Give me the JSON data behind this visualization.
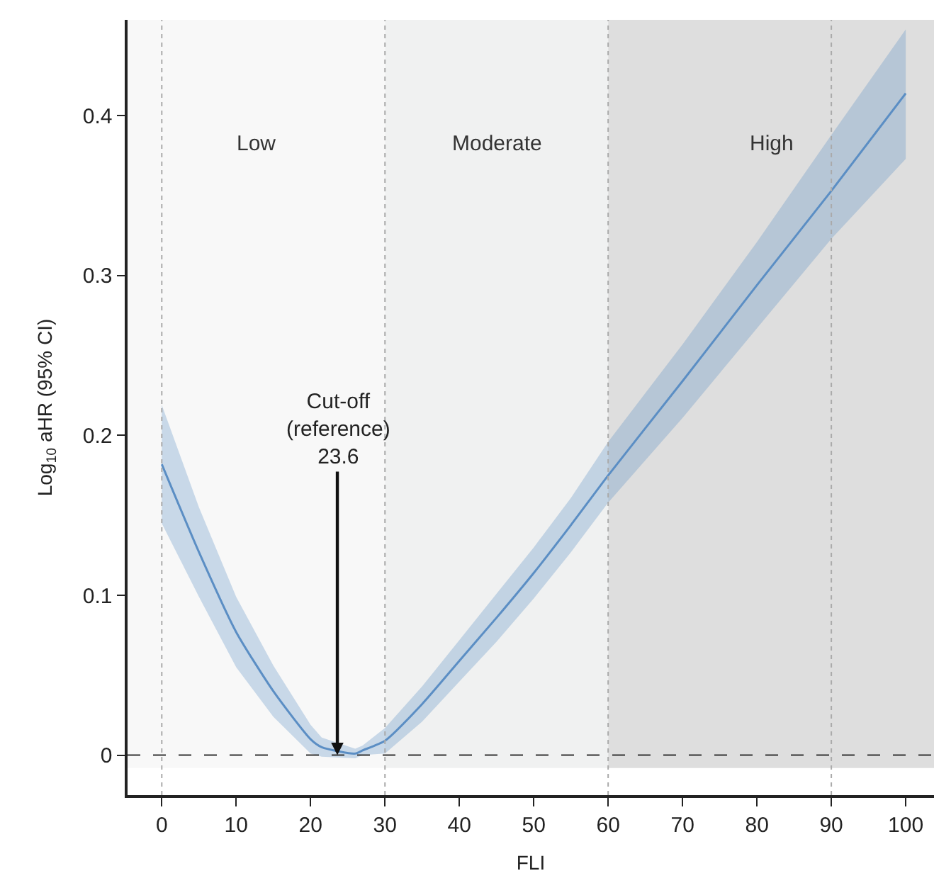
{
  "chart_data": {
    "type": "line",
    "xlabel": "FLI",
    "ylabel": "Log$_{10}$ aHR (95% CI)",
    "xlim": [
      -4.6,
      103.8
    ],
    "ylim": [
      -0.025,
      0.46
    ],
    "xticks": [
      0,
      10,
      20,
      30,
      40,
      50,
      60,
      70,
      80,
      90,
      100
    ],
    "yticks": [
      0,
      0.1,
      0.2,
      0.3,
      0.4
    ],
    "grid": false,
    "marker": "none",
    "line_style": "solid",
    "series": [
      {
        "color": "#5b8ec4",
        "x": [
          0,
          5,
          10,
          15,
          20,
          21.5,
          26,
          27,
          30,
          35,
          40,
          45,
          50,
          55,
          60,
          70,
          80,
          90,
          100
        ],
        "values": [
          0.182,
          0.127,
          0.077,
          0.04,
          0.01,
          0.005,
          0.001,
          0.003,
          0.009,
          0.032,
          0.059,
          0.086,
          0.114,
          0.144,
          0.175,
          0.234,
          0.294,
          0.353,
          0.414
        ],
        "lower": [
          0.145,
          0.099,
          0.055,
          0.024,
          0.001,
          -0.001,
          -0.002,
          0,
          0.001,
          0.021,
          0.046,
          0.071,
          0.098,
          0.127,
          0.158,
          0.211,
          0.267,
          0.323,
          0.373
        ],
        "upper": [
          0.219,
          0.155,
          0.099,
          0.056,
          0.019,
          0.011,
          0.004,
          0.006,
          0.017,
          0.043,
          0.072,
          0.101,
          0.13,
          0.161,
          0.196,
          0.257,
          0.321,
          0.388,
          0.454
        ]
      }
    ],
    "bands": [
      {
        "axis": "x",
        "from": -4.6,
        "to": 30,
        "label": "Low",
        "color": "#f8f8f8"
      },
      {
        "axis": "x",
        "from": 30,
        "to": 60,
        "label": "Moderate",
        "color": "#f0f1f1"
      },
      {
        "axis": "x",
        "from": 60,
        "to": 103.8,
        "label": "High",
        "color": "#dedede"
      }
    ],
    "ref_lines": [
      {
        "axis": "x",
        "value": 0,
        "color": "#aaaaaa",
        "line_style": "dotted"
      },
      {
        "axis": "x",
        "value": 30,
        "color": "#aaaaaa",
        "line_style": "dotted"
      },
      {
        "axis": "x",
        "value": 60,
        "color": "#aaaaaa",
        "line_style": "dotted"
      },
      {
        "axis": "x",
        "value": 90,
        "color": "#aaaaaa",
        "line_style": "dotted"
      },
      {
        "axis": "y",
        "value": 0,
        "color": "#333333",
        "line_style": "dashed"
      }
    ],
    "annotations": [
      {
        "text": "Cut-off\n(reference)\n23.6",
        "x": 23.6,
        "y": 0
      }
    ]
  }
}
